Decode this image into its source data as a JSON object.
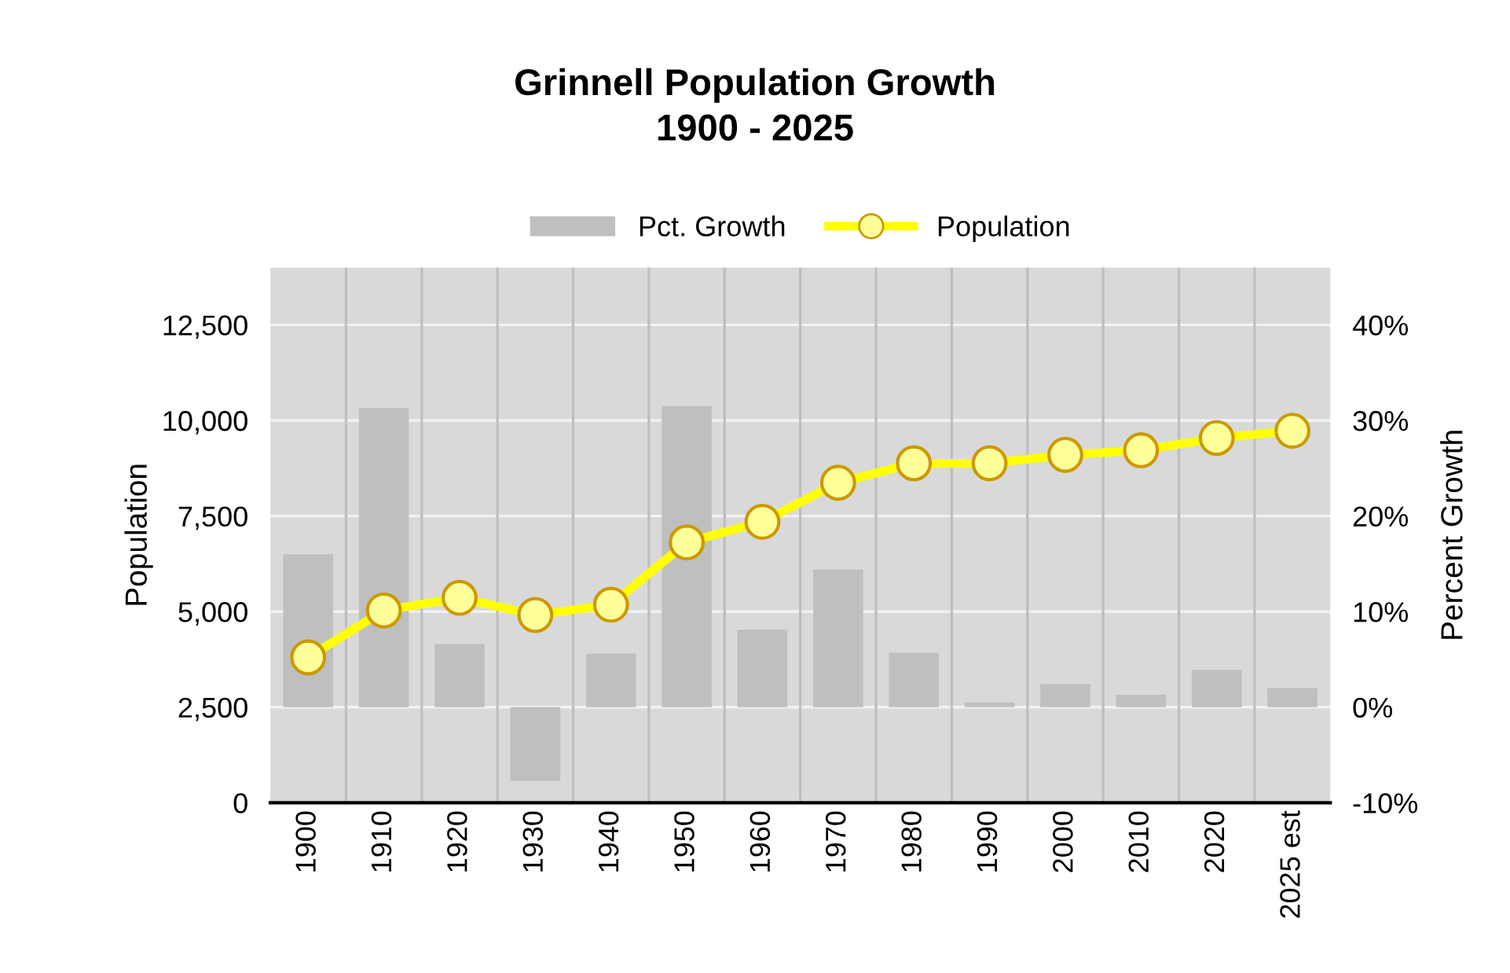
{
  "chart_data": {
    "type": "bar",
    "title": "Grinnell Population Growth\n1900 - 2025",
    "ylabel": "Population",
    "y2label": "Percent Growth",
    "categories": [
      "1900",
      "1910",
      "1920",
      "1930",
      "1940",
      "1950",
      "1960",
      "1970",
      "1980",
      "1990",
      "2000",
      "2010",
      "2020",
      "2025 est"
    ],
    "series": [
      {
        "name": "Pct. Growth",
        "axis": "y2",
        "color": "#bfbfbf",
        "values": [
          16.0,
          31.3,
          6.6,
          -7.7,
          5.6,
          31.5,
          8.1,
          14.4,
          5.7,
          0.5,
          2.4,
          1.3,
          3.9,
          2.0
        ]
      },
      {
        "name": "Population",
        "type": "line",
        "axis": "y",
        "color": "#ffff00",
        "values": [
          3800,
          5030,
          5360,
          4910,
          5180,
          6810,
          7350,
          8370,
          8880,
          8880,
          9100,
          9220,
          9540,
          9730
        ]
      }
    ],
    "ylim": [
      0,
      14000
    ],
    "yticks": [
      0,
      {
        "value": 2500,
        "label": "2,500"
      },
      {
        "value": 5000,
        "label": "5,000"
      },
      {
        "value": 7500,
        "label": "7,500"
      },
      {
        "value": 10000,
        "label": "10,000"
      },
      {
        "value": 12500,
        "label": "12,500"
      }
    ],
    "y2lim": [
      -10,
      46
    ],
    "y2ticks": [
      {
        "value": -10,
        "label": "-10%"
      },
      {
        "value": 0,
        "label": "0%"
      },
      {
        "value": 10,
        "label": "10%"
      },
      {
        "value": 20,
        "label": "20%"
      },
      {
        "value": 30,
        "label": "30%"
      },
      {
        "value": 40,
        "label": "40%"
      }
    ],
    "grid": true,
    "legend": "top",
    "marker": "circle",
    "line_style": "solid"
  }
}
